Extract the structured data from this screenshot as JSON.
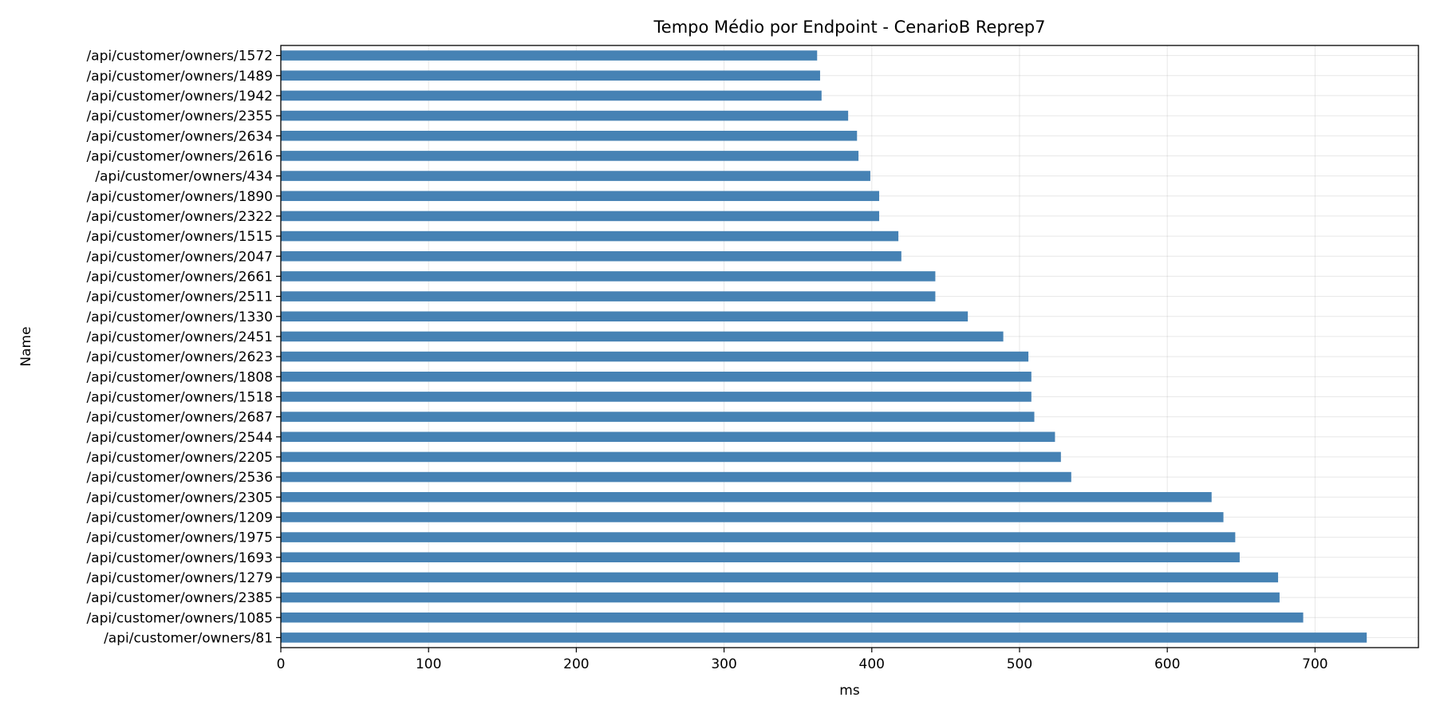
{
  "chart_data": {
    "type": "bar",
    "orientation": "horizontal",
    "title": "Tempo Médio por Endpoint - CenarioB Reprep7",
    "xlabel": "ms",
    "ylabel": "Name",
    "xlim": [
      0,
      770
    ],
    "xticks": [
      0,
      100,
      200,
      300,
      400,
      500,
      600,
      700
    ],
    "grid": true,
    "bar_color": "#4682b4",
    "categories": [
      "/api/customer/owners/1572",
      "/api/customer/owners/1489",
      "/api/customer/owners/1942",
      "/api/customer/owners/2355",
      "/api/customer/owners/2634",
      "/api/customer/owners/2616",
      "/api/customer/owners/434",
      "/api/customer/owners/1890",
      "/api/customer/owners/2322",
      "/api/customer/owners/1515",
      "/api/customer/owners/2047",
      "/api/customer/owners/2661",
      "/api/customer/owners/2511",
      "/api/customer/owners/1330",
      "/api/customer/owners/2451",
      "/api/customer/owners/2623",
      "/api/customer/owners/1808",
      "/api/customer/owners/1518",
      "/api/customer/owners/2687",
      "/api/customer/owners/2544",
      "/api/customer/owners/2205",
      "/api/customer/owners/2536",
      "/api/customer/owners/2305",
      "/api/customer/owners/1209",
      "/api/customer/owners/1975",
      "/api/customer/owners/1693",
      "/api/customer/owners/1279",
      "/api/customer/owners/2385",
      "/api/customer/owners/1085",
      "/api/customer/owners/81"
    ],
    "values": [
      363,
      365,
      366,
      384,
      390,
      391,
      399,
      405,
      405,
      418,
      420,
      443,
      443,
      465,
      489,
      506,
      508,
      508,
      510,
      524,
      528,
      535,
      630,
      638,
      646,
      649,
      675,
      676,
      692,
      735
    ]
  }
}
